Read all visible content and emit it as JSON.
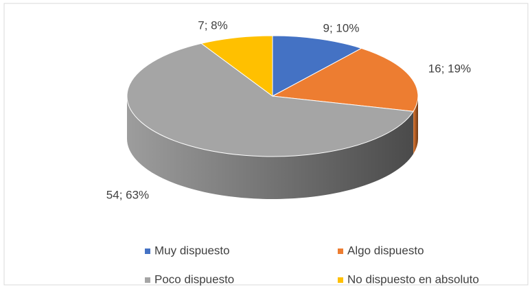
{
  "chart_data": {
    "type": "pie",
    "categories": [
      "Muy dispuesto",
      "Algo dispuesto",
      "Poco dispuesto",
      "No dispuesto en absoluto"
    ],
    "values": [
      9,
      16,
      54,
      7
    ],
    "value_labels": [
      "9; 10%",
      "16; 19%",
      "54; 63%",
      "7; 8%"
    ],
    "colors": [
      "#4472c4",
      "#ed7d31",
      "#a5a5a5",
      "#ffc000"
    ],
    "legend": "bottom"
  }
}
